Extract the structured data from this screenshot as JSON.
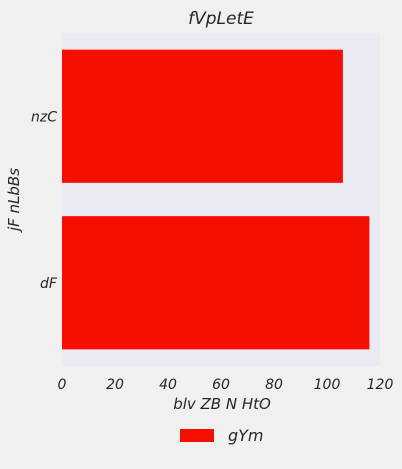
{
  "chart_data": {
    "type": "bar",
    "orientation": "horizontal",
    "title": "fVpLetE",
    "xlabel": "blv ZB N HtO",
    "ylabel": "jF nLbBs",
    "categories": [
      "nzC",
      "dF"
    ],
    "series": [
      {
        "name": "gYm",
        "values": [
          106,
          116
        ],
        "color": "#f50f00"
      }
    ],
    "xlim": [
      0,
      120
    ],
    "xticks": [
      0,
      20,
      40,
      60,
      80,
      100,
      120
    ],
    "grid": false,
    "legend_position": "bottom-center",
    "colors": {
      "plot_background": "#eaeaf2",
      "page_background": "#f0f0f0"
    }
  }
}
